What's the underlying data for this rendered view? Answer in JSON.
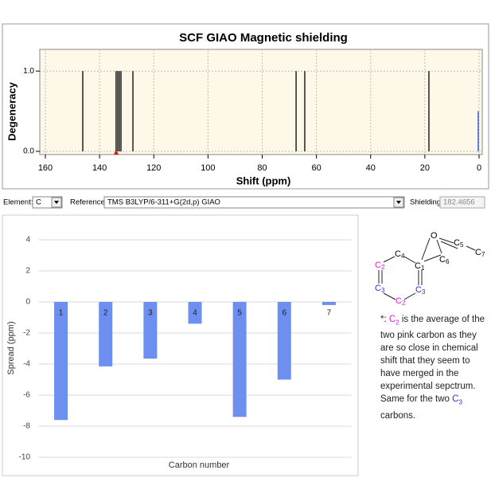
{
  "chart_data": [
    {
      "type": "spectrum",
      "title": "SCF GIAO Magnetic shielding",
      "x_label": "Shift (ppm)",
      "y_label": "Degeneracy",
      "x": [
        146.2,
        133.9,
        133.3,
        132.7,
        132.1,
        127.7,
        67.5,
        64.3,
        18.5
      ],
      "values": [
        1,
        1,
        1,
        1,
        1,
        1,
        1,
        1,
        1
      ],
      "color": "#000000",
      "reference": {
        "x": 0.3,
        "value": 0.5,
        "color": "#3a5be0"
      },
      "xlim": [
        160,
        0
      ],
      "xticks": [
        160,
        140,
        120,
        100,
        80,
        60,
        40,
        20,
        0
      ],
      "ylim": [
        -0.04,
        1.27
      ],
      "yticks": [
        {
          "value": 0,
          "label": "0.0"
        },
        {
          "value": 1,
          "label": "1.0"
        }
      ],
      "grid": true
    },
    {
      "type": "bar",
      "x_label": "Carbon number",
      "y_label": "Spread (ppm)",
      "categories": [
        "1",
        "2",
        "3",
        "4",
        "5",
        "6",
        "7"
      ],
      "values": [
        -7.6,
        -4.15,
        -3.65,
        -1.4,
        -7.4,
        -5.0,
        -0.2
      ],
      "color": "#6d8ff0",
      "ylim": [
        -10,
        4
      ],
      "yticks": [
        4,
        2,
        0,
        -2,
        -4,
        -6,
        -8,
        -10
      ],
      "grid": true
    }
  ],
  "controls": {
    "element_label": "Element:",
    "element": "C",
    "reference_label": "Reference:",
    "reference": "TMS B3LYP/6-311+G(2d,p) GIAO",
    "shielding_label": "Shielding:",
    "shielding": "182.4656"
  },
  "molecule": {
    "atoms": [
      {
        "symbol": "O"
      },
      {
        "symbol": "C",
        "sub": "5"
      },
      {
        "symbol": "C",
        "sub": "7"
      },
      {
        "symbol": "C",
        "sub": "6"
      },
      {
        "symbol": "C",
        "sub": "1"
      },
      {
        "symbol": "C",
        "sub": "4"
      },
      {
        "symbol": "C",
        "sub": "2"
      },
      {
        "symbol": "C",
        "sub": "3"
      },
      {
        "symbol": "C",
        "sub": "2"
      },
      {
        "symbol": "C",
        "sub": "3"
      }
    ]
  },
  "note": {
    "star": "*: ",
    "c2": {
      "symbol": "C",
      "sub": "2"
    },
    "text1": " is the average of the two pink carbon as they are so close in chemical shift that they seem to have merged in the experimental sepctrum. Same for the two ",
    "c3": {
      "symbol": "C",
      "sub": "3"
    },
    "text2": " carbons."
  }
}
